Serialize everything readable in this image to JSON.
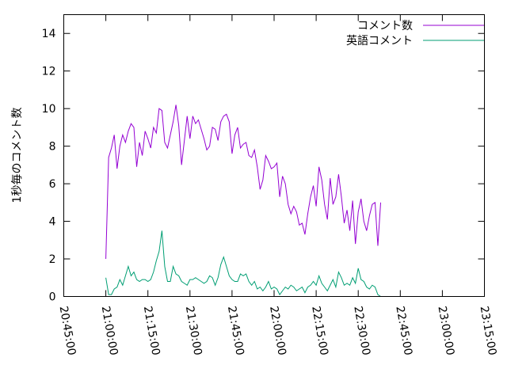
{
  "chart_data": {
    "type": "line",
    "ylabel": "1秒毎のコメント数",
    "ylim": [
      0,
      15
    ],
    "yticks": [
      "0",
      "2",
      "4",
      "6",
      "8",
      "10",
      "12",
      "14"
    ],
    "xlim_minutes": [
      -15,
      135
    ],
    "xticks": [
      "20:45:00",
      "21:00:00",
      "21:15:00",
      "21:30:00",
      "21:45:00",
      "22:00:00",
      "22:15:00",
      "22:30:00",
      "22:45:00",
      "23:00:00",
      "23:15:00"
    ],
    "legend_position": "top-right",
    "series": [
      {
        "name": "コメント数",
        "color": "#9400d3",
        "points": [
          [
            0,
            2.0
          ],
          [
            1,
            7.4
          ],
          [
            2,
            7.9
          ],
          [
            3,
            8.6
          ],
          [
            4,
            6.8
          ],
          [
            5,
            8.0
          ],
          [
            6,
            8.6
          ],
          [
            7,
            8.2
          ],
          [
            8,
            8.8
          ],
          [
            9,
            9.2
          ],
          [
            10,
            9.0
          ],
          [
            11,
            6.9
          ],
          [
            12,
            8.2
          ],
          [
            13,
            7.5
          ],
          [
            14,
            8.8
          ],
          [
            15,
            8.4
          ],
          [
            16,
            7.9
          ],
          [
            17,
            9.0
          ],
          [
            18,
            8.7
          ],
          [
            19,
            10.0
          ],
          [
            20,
            9.9
          ],
          [
            21,
            8.2
          ],
          [
            22,
            7.9
          ],
          [
            23,
            8.6
          ],
          [
            24,
            9.3
          ],
          [
            25,
            10.2
          ],
          [
            26,
            9.1
          ],
          [
            27,
            7.0
          ],
          [
            28,
            8.3
          ],
          [
            29,
            9.6
          ],
          [
            30,
            8.4
          ],
          [
            31,
            9.6
          ],
          [
            32,
            9.2
          ],
          [
            33,
            9.4
          ],
          [
            34,
            8.9
          ],
          [
            35,
            8.4
          ],
          [
            36,
            7.8
          ],
          [
            37,
            8.0
          ],
          [
            38,
            9.0
          ],
          [
            39,
            8.9
          ],
          [
            40,
            8.3
          ],
          [
            41,
            9.3
          ],
          [
            42,
            9.6
          ],
          [
            43,
            9.7
          ],
          [
            44,
            9.3
          ],
          [
            45,
            7.6
          ],
          [
            46,
            8.6
          ],
          [
            47,
            9.0
          ],
          [
            48,
            7.9
          ],
          [
            49,
            8.1
          ],
          [
            50,
            8.2
          ],
          [
            51,
            7.5
          ],
          [
            52,
            7.4
          ],
          [
            53,
            7.8
          ],
          [
            54,
            6.9
          ],
          [
            55,
            5.7
          ],
          [
            56,
            6.2
          ],
          [
            57,
            7.5
          ],
          [
            58,
            7.2
          ],
          [
            59,
            6.8
          ],
          [
            60,
            6.9
          ],
          [
            61,
            7.1
          ],
          [
            62,
            5.3
          ],
          [
            63,
            6.4
          ],
          [
            64,
            6.0
          ],
          [
            65,
            4.9
          ],
          [
            66,
            4.4
          ],
          [
            67,
            4.8
          ],
          [
            68,
            4.5
          ],
          [
            69,
            3.8
          ],
          [
            70,
            3.9
          ],
          [
            71,
            3.3
          ],
          [
            72,
            4.4
          ],
          [
            73,
            5.3
          ],
          [
            74,
            5.9
          ],
          [
            75,
            4.8
          ],
          [
            76,
            6.9
          ],
          [
            77,
            6.2
          ],
          [
            78,
            4.9
          ],
          [
            79,
            4.1
          ],
          [
            80,
            6.3
          ],
          [
            81,
            4.9
          ],
          [
            82,
            5.3
          ],
          [
            83,
            6.5
          ],
          [
            84,
            5.3
          ],
          [
            85,
            3.9
          ],
          [
            86,
            4.6
          ],
          [
            87,
            3.5
          ],
          [
            88,
            5.1
          ],
          [
            89,
            2.8
          ],
          [
            90,
            4.5
          ],
          [
            91,
            5.2
          ],
          [
            92,
            4.0
          ],
          [
            93,
            3.5
          ],
          [
            94,
            4.3
          ],
          [
            95,
            4.9
          ],
          [
            96,
            5.0
          ],
          [
            97,
            2.7
          ],
          [
            98,
            5.0
          ]
        ]
      },
      {
        "name": "英語コメント",
        "color": "#009e73",
        "points": [
          [
            0,
            1.0
          ],
          [
            1,
            0.1
          ],
          [
            2,
            0.1
          ],
          [
            3,
            0.4
          ],
          [
            4,
            0.5
          ],
          [
            5,
            0.9
          ],
          [
            6,
            0.6
          ],
          [
            7,
            1.1
          ],
          [
            8,
            1.6
          ],
          [
            9,
            1.1
          ],
          [
            10,
            1.3
          ],
          [
            11,
            0.9
          ],
          [
            12,
            0.8
          ],
          [
            13,
            0.9
          ],
          [
            14,
            0.9
          ],
          [
            15,
            0.8
          ],
          [
            16,
            0.9
          ],
          [
            17,
            1.3
          ],
          [
            18,
            1.9
          ],
          [
            19,
            2.4
          ],
          [
            20,
            3.5
          ],
          [
            21,
            1.6
          ],
          [
            22,
            0.8
          ],
          [
            23,
            0.8
          ],
          [
            24,
            1.6
          ],
          [
            25,
            1.2
          ],
          [
            26,
            1.1
          ],
          [
            27,
            0.8
          ],
          [
            28,
            0.7
          ],
          [
            29,
            0.6
          ],
          [
            30,
            0.9
          ],
          [
            31,
            0.9
          ],
          [
            32,
            1.0
          ],
          [
            33,
            0.9
          ],
          [
            34,
            0.8
          ],
          [
            35,
            0.7
          ],
          [
            36,
            0.8
          ],
          [
            37,
            1.1
          ],
          [
            38,
            1.0
          ],
          [
            39,
            0.6
          ],
          [
            40,
            1.0
          ],
          [
            41,
            1.7
          ],
          [
            42,
            2.1
          ],
          [
            43,
            1.6
          ],
          [
            44,
            1.1
          ],
          [
            45,
            0.9
          ],
          [
            46,
            0.8
          ],
          [
            47,
            0.8
          ],
          [
            48,
            1.2
          ],
          [
            49,
            1.1
          ],
          [
            50,
            1.2
          ],
          [
            51,
            0.8
          ],
          [
            52,
            0.6
          ],
          [
            53,
            0.8
          ],
          [
            54,
            0.4
          ],
          [
            55,
            0.5
          ],
          [
            56,
            0.3
          ],
          [
            57,
            0.5
          ],
          [
            58,
            0.8
          ],
          [
            59,
            0.4
          ],
          [
            60,
            0.5
          ],
          [
            61,
            0.4
          ],
          [
            62,
            0.1
          ],
          [
            63,
            0.3
          ],
          [
            64,
            0.5
          ],
          [
            65,
            0.4
          ],
          [
            66,
            0.6
          ],
          [
            67,
            0.5
          ],
          [
            68,
            0.3
          ],
          [
            69,
            0.4
          ],
          [
            70,
            0.5
          ],
          [
            71,
            0.2
          ],
          [
            72,
            0.5
          ],
          [
            73,
            0.6
          ],
          [
            74,
            0.8
          ],
          [
            75,
            0.6
          ],
          [
            76,
            1.1
          ],
          [
            77,
            0.7
          ],
          [
            78,
            0.5
          ],
          [
            79,
            0.3
          ],
          [
            80,
            0.6
          ],
          [
            81,
            0.9
          ],
          [
            82,
            0.5
          ],
          [
            83,
            1.3
          ],
          [
            84,
            1.0
          ],
          [
            85,
            0.6
          ],
          [
            86,
            0.7
          ],
          [
            87,
            0.6
          ],
          [
            88,
            1.0
          ],
          [
            89,
            0.7
          ],
          [
            90,
            1.5
          ],
          [
            91,
            0.9
          ],
          [
            92,
            0.8
          ],
          [
            93,
            0.5
          ],
          [
            94,
            0.4
          ],
          [
            95,
            0.6
          ],
          [
            96,
            0.5
          ],
          [
            97,
            0.1
          ],
          [
            98,
            0.0
          ]
        ]
      }
    ]
  }
}
